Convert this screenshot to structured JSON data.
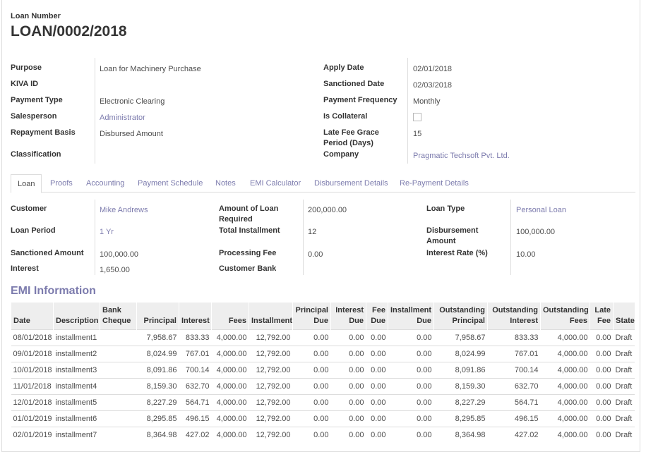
{
  "header": {
    "label": "Loan Number",
    "title": "LOAN/0002/2018"
  },
  "fields_left": [
    {
      "label": "Purpose",
      "value": "Loan for Machinery Purchase"
    },
    {
      "label": "KIVA ID"
    },
    {
      "label": "Payment Type",
      "value": "Electronic Clearing"
    },
    {
      "label": "Salesperson",
      "value": "Administrator",
      "link": true
    },
    {
      "label": "Repayment Basis",
      "value": "Disbursed Amount"
    },
    {
      "label": "Classification"
    }
  ],
  "fields_right": [
    {
      "label": "Apply Date",
      "value": "02/01/2018"
    },
    {
      "label": "Sanctioned Date",
      "value": "02/03/2018"
    },
    {
      "label": "Payment Frequency",
      "value": "Monthly"
    },
    {
      "label": "Is Collateral",
      "checked": false
    },
    {
      "label": "Late Fee Grace Period (Days)",
      "value": "15"
    },
    {
      "label": "Company",
      "value": "Pragmatic Techsoft Pvt. Ltd.",
      "link": true
    }
  ],
  "tabs": [
    "Loan",
    "Proofs",
    "Accounting",
    "Payment Schedule",
    "Notes",
    "EMI Calculator",
    "Disbursement Details",
    "Re-Payment Details"
  ],
  "active_tab": 0,
  "loan_fields": [
    [
      {
        "label": "Customer",
        "value": "Mike Andrews",
        "link": true
      },
      {
        "label": "Loan Period",
        "value": "1 Yr",
        "link": true
      },
      {
        "label": "Sanctioned Amount",
        "value": "100,000.00"
      },
      {
        "label": "Interest",
        "value": "1,650.00"
      }
    ],
    [
      {
        "label": "Amount of Loan Required",
        "value": "200,000.00"
      },
      {
        "label": "Total Installment",
        "value": "12"
      },
      {
        "label": "Processing Fee",
        "value": "0.00"
      },
      {
        "label": "Customer Bank"
      }
    ],
    [
      {
        "label": "Loan Type",
        "value": "Personal Loan",
        "link": true
      },
      {
        "label": "Disbursement Amount",
        "value": "100,000.00"
      },
      {
        "label": "Interest Rate (%)",
        "value": "10.00"
      }
    ]
  ],
  "emi": {
    "title": "EMI Information",
    "columns": [
      "Date",
      "Description",
      "Bank Cheque",
      "Principal",
      "Interest",
      "Fees",
      "Installment",
      "Principal Due",
      "Interest Due",
      "Fee Due",
      "Installment Due",
      "Outstanding Principal",
      "Outstanding Interest",
      "Outstanding Fees",
      "Late Fee",
      "State"
    ],
    "rows": [
      [
        "08/01/2018",
        "installment1",
        null,
        "7,958.67",
        "833.33",
        "4,000.00",
        "12,792.00",
        "0.00",
        "0.00",
        "0.00",
        "0.00",
        "7,958.67",
        "833.33",
        "4,000.00",
        "0.00",
        "Draft"
      ],
      [
        "09/01/2018",
        "installment2",
        null,
        "8,024.99",
        "767.01",
        "4,000.00",
        "12,792.00",
        "0.00",
        "0.00",
        "0.00",
        "0.00",
        "8,024.99",
        "767.01",
        "4,000.00",
        "0.00",
        "Draft"
      ],
      [
        "10/01/2018",
        "installment3",
        null,
        "8,091.86",
        "700.14",
        "4,000.00",
        "12,792.00",
        "0.00",
        "0.00",
        "0.00",
        "0.00",
        "8,091.86",
        "700.14",
        "4,000.00",
        "0.00",
        "Draft"
      ],
      [
        "11/01/2018",
        "installment4",
        null,
        "8,159.30",
        "632.70",
        "4,000.00",
        "12,792.00",
        "0.00",
        "0.00",
        "0.00",
        "0.00",
        "8,159.30",
        "632.70",
        "4,000.00",
        "0.00",
        "Draft"
      ],
      [
        "12/01/2018",
        "installment5",
        null,
        "8,227.29",
        "564.71",
        "4,000.00",
        "12,792.00",
        "0.00",
        "0.00",
        "0.00",
        "0.00",
        "8,227.29",
        "564.71",
        "4,000.00",
        "0.00",
        "Draft"
      ],
      [
        "01/01/2019",
        "installment6",
        null,
        "8,295.85",
        "496.15",
        "4,000.00",
        "12,792.00",
        "0.00",
        "0.00",
        "0.00",
        "0.00",
        "8,295.85",
        "496.15",
        "4,000.00",
        "0.00",
        "Draft"
      ],
      [
        "02/01/2019",
        "installment7",
        null,
        "8,364.98",
        "427.02",
        "4,000.00",
        "12,792.00",
        "0.00",
        "0.00",
        "0.00",
        "0.00",
        "8,364.98",
        "427.02",
        "4,000.00",
        "0.00",
        "Draft"
      ]
    ]
  }
}
